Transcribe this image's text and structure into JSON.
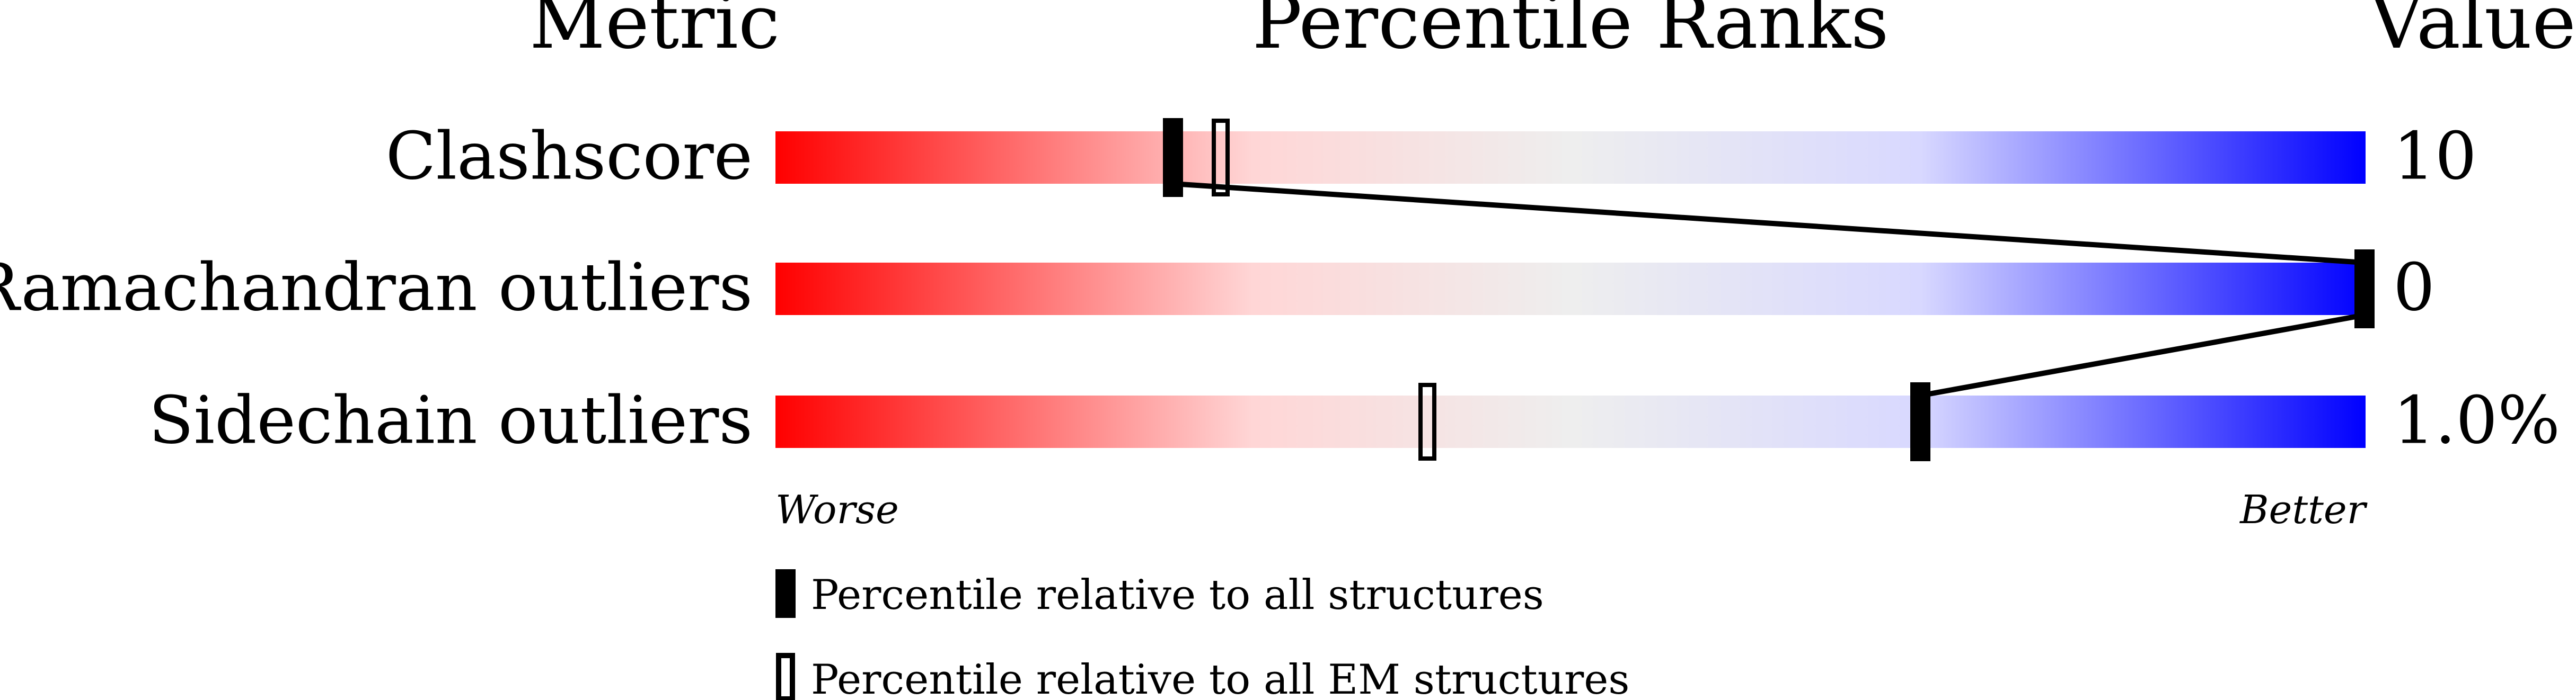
{
  "chart_data": {
    "type": "percentile-bar",
    "headers": {
      "metric": "Metric",
      "ranks": "Percentile Ranks",
      "value": "Value"
    },
    "xlim": [
      0,
      100
    ],
    "axis_labels": {
      "left": "Worse",
      "right": "Better"
    },
    "gradient_colors": [
      "#ff0000",
      "#ffd6d6",
      "#eeeeee",
      "#d8d8ff",
      "#0000ff"
    ],
    "metrics": [
      {
        "name": "Clashscore",
        "value": "10",
        "percentile_all": 25,
        "percentile_em": 28
      },
      {
        "name": "Ramachandran outliers",
        "value": "0",
        "percentile_all": 100,
        "percentile_em": 100
      },
      {
        "name": "Sidechain outliers",
        "value": "1.0%",
        "percentile_all": 72,
        "percentile_em": 41
      }
    ],
    "legend": [
      {
        "marker": "filled",
        "label": "Percentile relative to all structures"
      },
      {
        "marker": "open",
        "label": "Percentile relative to all EM structures"
      }
    ]
  }
}
